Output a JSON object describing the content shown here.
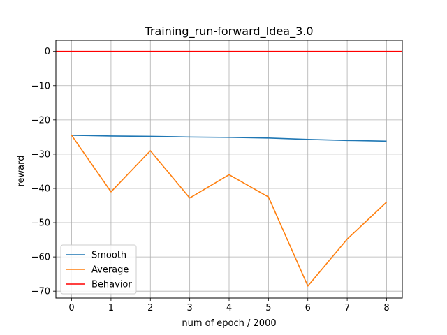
{
  "chart_data": {
    "type": "line",
    "title": "Training_run-forward_Idea_3.0",
    "xlabel": "num of epoch / 2000",
    "ylabel": "reward",
    "x": [
      0,
      1,
      2,
      3,
      4,
      5,
      6,
      7,
      8
    ],
    "xlim": [
      -0.4,
      8.4
    ],
    "ylim": [
      -72,
      3.2
    ],
    "xticks": [
      0,
      1,
      2,
      3,
      4,
      5,
      6,
      7,
      8
    ],
    "yticks": [
      0,
      -10,
      -20,
      -30,
      -40,
      -50,
      -60,
      -70
    ],
    "grid": true,
    "legend_position": "lower-left",
    "series": [
      {
        "name": "Smooth",
        "color": "#1f77b4",
        "values": [
          -24.5,
          -24.7,
          -24.8,
          -25.0,
          -25.1,
          -25.3,
          -25.7,
          -26.0,
          -26.2
        ]
      },
      {
        "name": "Average",
        "color": "#ff7f0e",
        "values": [
          -24.5,
          -41.0,
          -29.0,
          -42.8,
          -36.0,
          -42.5,
          -68.5,
          -54.8,
          -44.0
        ]
      },
      {
        "name": "Behavior",
        "color": "#ff0000",
        "hline": true,
        "values": [
          0,
          0,
          0,
          0,
          0,
          0,
          0,
          0,
          0
        ]
      }
    ]
  }
}
